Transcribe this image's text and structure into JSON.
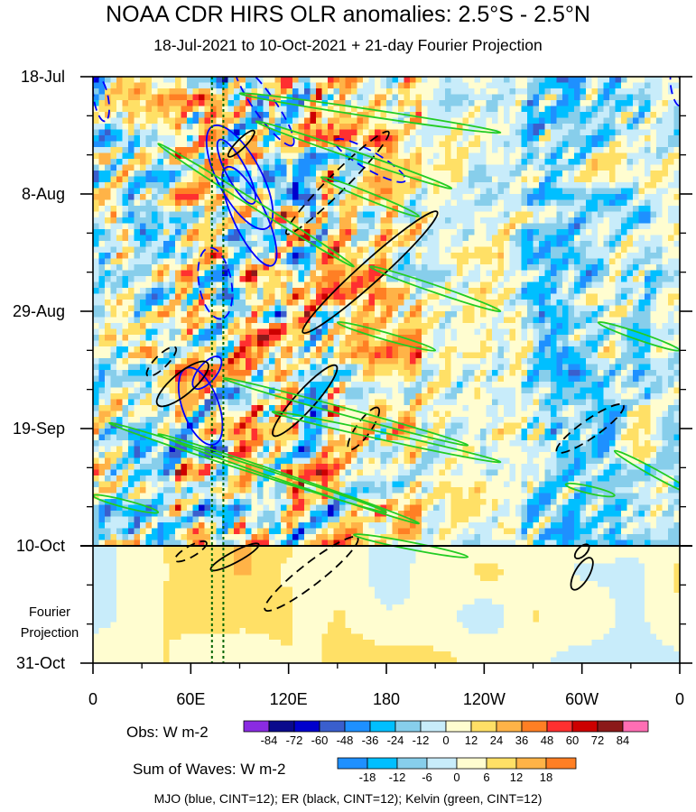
{
  "chart_data": {
    "type": "heatmap",
    "title": "NOAA CDR HIRS OLR anomalies: 2.5°S - 2.5°N",
    "subtitle": "18-Jul-2021 to 10-Oct-2021 + 21-day Fourier Projection",
    "x_ticks": [
      "0",
      "60E",
      "120E",
      "180",
      "120W",
      "60W",
      "0"
    ],
    "x_tick_values": [
      0,
      60,
      120,
      180,
      240,
      300,
      360
    ],
    "y_ticks": [
      "18-Jul",
      "8-Aug",
      "29-Aug",
      "19-Sep",
      "10-Oct",
      "31-Oct"
    ],
    "y_tick_days": [
      0,
      21,
      42,
      63,
      84,
      105
    ],
    "xlim": [
      0,
      360
    ],
    "ylim_days": [
      0,
      105
    ],
    "observation_end_label": "10-Oct",
    "projection_label_line1": "Fourier",
    "projection_label_line2": "Projection",
    "obs_colorbar": {
      "title": "Obs: W m-2",
      "levels": [
        "-84",
        "-72",
        "-60",
        "-48",
        "-36",
        "-24",
        "-12",
        "0",
        "12",
        "24",
        "36",
        "48",
        "60",
        "72",
        "84"
      ],
      "colors": [
        "#8a2be2",
        "#0a0a8c",
        "#0000cd",
        "#3a5fcd",
        "#1e90ff",
        "#00bfff",
        "#87ceeb",
        "#c8ecfa",
        "#fffdd0",
        "#ffe066",
        "#ffb347",
        "#ff7f24",
        "#ff3030",
        "#cd0000",
        "#8b1a1a",
        "#ff6eb4"
      ]
    },
    "waves_colorbar": {
      "title": "Sum of Waves: W m-2",
      "levels": [
        "-18",
        "-12",
        "-6",
        "0",
        "6",
        "12",
        "18"
      ],
      "colors": [
        "#1e90ff",
        "#00bfff",
        "#87ceeb",
        "#c8ecfa",
        "#fffdd0",
        "#ffe066",
        "#ffb347",
        "#ff7f24"
      ]
    },
    "footer": "MJO (blue, CINT=12); ER (black, CINT=12); Kelvin (green, CINT=12)",
    "series_colors": {
      "mjo": "#0000ff",
      "er": "#000000",
      "kelvin": "#22cc22",
      "reference_lines": "#006400"
    },
    "reference_longitudes_deg": [
      73,
      80
    ]
  }
}
